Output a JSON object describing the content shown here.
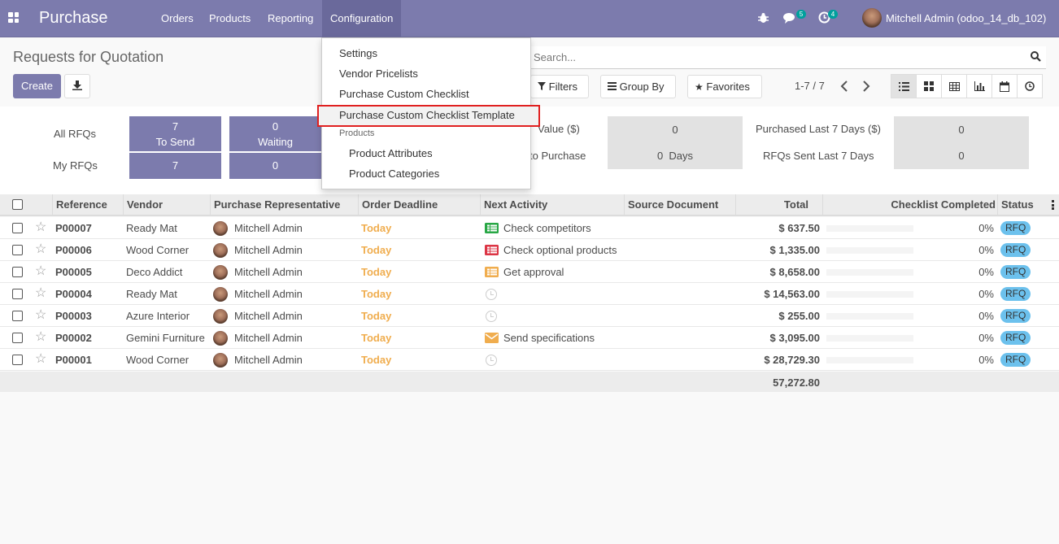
{
  "app": {
    "name": "Purchase"
  },
  "nav": {
    "menus": [
      "Orders",
      "Products",
      "Reporting",
      "Configuration"
    ]
  },
  "systray": {
    "messages_count": "5",
    "activities_count": "4",
    "user": "Mitchell Admin (odoo_14_db_102)"
  },
  "page": {
    "title": "Requests for Quotation",
    "create_label": "Create"
  },
  "search": {
    "placeholder": "Search..."
  },
  "filters": {
    "filters_label": "Filters",
    "groupby_label": "Group By",
    "favorites_label": "Favorites"
  },
  "pager": {
    "text": "1-7 / 7"
  },
  "dashboard": {
    "all_rfqs": "All RFQs",
    "my_rfqs": "My RFQs",
    "to_send_value": "7",
    "to_send_label": "To Send",
    "waiting_value": "0",
    "waiting_label": "Waiting",
    "my_to_send": "7",
    "my_waiting": "0",
    "avg_value_label": "Value ($)",
    "avg_value": "0",
    "lead_time_label": "to Purchase",
    "lead_time_value": "0  Days",
    "purchased_label": "Purchased Last 7 Days ($)",
    "purchased_value": "0",
    "rfq_sent_label": "RFQs Sent Last 7 Days",
    "rfq_sent_value": "0"
  },
  "dropdown": {
    "items": [
      "Settings",
      "Vendor Pricelists",
      "Purchase Custom Checklist",
      "Purchase Custom Checklist Template"
    ],
    "section": "Products",
    "sub_items": [
      "Product Attributes",
      "Product Categories"
    ]
  },
  "table": {
    "headers": [
      "Reference",
      "Vendor",
      "Purchase Representative",
      "Order Deadline",
      "Next Activity",
      "Source Document",
      "Total",
      "Checklist Completed",
      "Status"
    ],
    "rows": [
      {
        "ref": "P00007",
        "vendor": "Ready Mat",
        "rep": "Mitchell Admin",
        "deadline": "Today",
        "activity": "Check competitors",
        "activity_icon": "list-icon-green",
        "total": "$ 637.50",
        "checklist": "0%",
        "status": "RFQ"
      },
      {
        "ref": "P00006",
        "vendor": "Wood Corner",
        "rep": "Mitchell Admin",
        "deadline": "Today",
        "activity": "Check optional products",
        "activity_icon": "list-icon-red",
        "total": "$ 1,335.00",
        "checklist": "0%",
        "status": "RFQ"
      },
      {
        "ref": "P00005",
        "vendor": "Deco Addict",
        "rep": "Mitchell Admin",
        "deadline": "Today",
        "activity": "Get approval",
        "activity_icon": "list-icon-orange",
        "total": "$ 8,658.00",
        "checklist": "0%",
        "status": "RFQ"
      },
      {
        "ref": "P00004",
        "vendor": "Ready Mat",
        "rep": "Mitchell Admin",
        "deadline": "Today",
        "activity": "",
        "activity_icon": "clock-icon",
        "total": "$ 14,563.00",
        "checklist": "0%",
        "status": "RFQ"
      },
      {
        "ref": "P00003",
        "vendor": "Azure Interior",
        "rep": "Mitchell Admin",
        "deadline": "Today",
        "activity": "",
        "activity_icon": "clock-icon",
        "total": "$ 255.00",
        "checklist": "0%",
        "status": "RFQ"
      },
      {
        "ref": "P00002",
        "vendor": "Gemini Furniture",
        "rep": "Mitchell Admin",
        "deadline": "Today",
        "activity": "Send specifications",
        "activity_icon": "envelope-icon",
        "total": "$ 3,095.00",
        "checklist": "0%",
        "status": "RFQ"
      },
      {
        "ref": "P00001",
        "vendor": "Wood Corner",
        "rep": "Mitchell Admin",
        "deadline": "Today",
        "activity": "",
        "activity_icon": "clock-icon",
        "total": "$ 28,729.30",
        "checklist": "0%",
        "status": "RFQ"
      }
    ],
    "footer_total": "57,272.80"
  },
  "colors": {
    "brand": "#7c7bad",
    "deadline": "#f0ad4e",
    "status": "#6cc1ed",
    "highlight": "#e02020"
  }
}
